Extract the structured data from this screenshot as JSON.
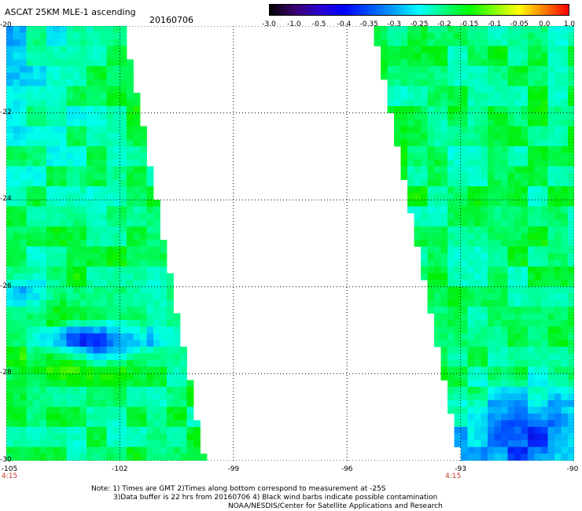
{
  "header": {
    "title": "ASCAT 25KM MLE-1 ascending",
    "date": "20160706"
  },
  "colorbar": {
    "labels": [
      "-3.0",
      "-1.0",
      "-0.5",
      "-0.4",
      "-0.35",
      "-0.3",
      "-0.25",
      "-0.2",
      "-0.15",
      "-0.1",
      "-0.05",
      "0.0",
      "1.0"
    ],
    "colors": [
      "#000000",
      "#3a0070",
      "#2a00d0",
      "#0000ff",
      "#0050ff",
      "#00a0ff",
      "#00ffff",
      "#00ff80",
      "#00ff00",
      "#80ff00",
      "#ffff00",
      "#ff8000",
      "#ff0000"
    ]
  },
  "map": {
    "lat_range": [
      -30,
      -20
    ],
    "lon_range": [
      -105,
      -90
    ],
    "lat_ticks": [
      "-20",
      "-22",
      "-24",
      "-26",
      "-28",
      "-30"
    ],
    "lon_ticks": [
      "-105",
      "-102",
      "-99",
      "-96",
      "-93",
      "-90"
    ],
    "times": [
      "4:15",
      "4:15"
    ]
  },
  "notes": {
    "line1": "Note: 1) Times are GMT 2)Times along bottom correspond to measurement at -25S",
    "line2": "3)Data buffer is 22 hrs from 20160706 4) Black wind barbs indicate possible contamination",
    "line3": "NOAA/NESDIS/Center for Satellite Applications and Research"
  }
}
